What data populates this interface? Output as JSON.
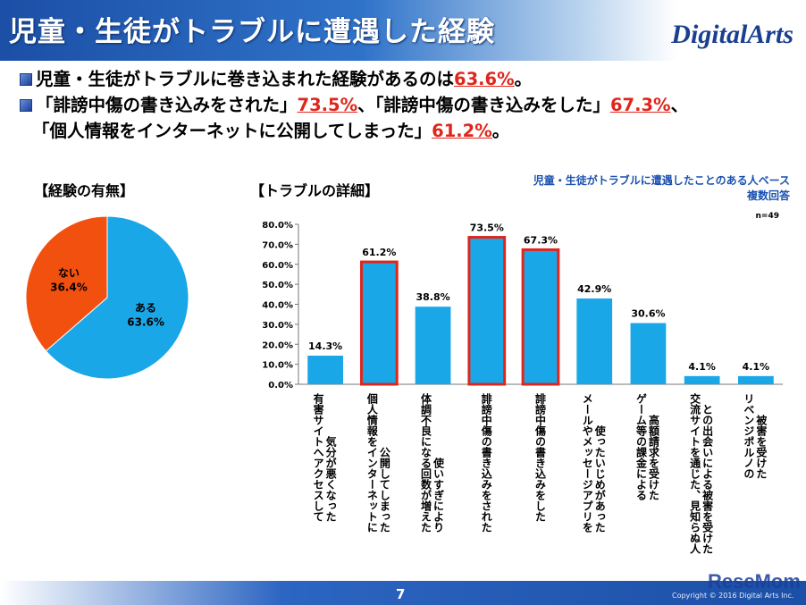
{
  "header": {
    "title": "児童・生徒がトラブルに遭遇した経験",
    "logo": "DigitalArts"
  },
  "bullets": {
    "line1_pre": "児童・生徒がトラブルに巻き込まれた経験があるのは",
    "line1_val": "63.6%",
    "line1_post": "。",
    "line2_a": "「誹謗中傷の書き込みをされた」",
    "line2_a_val": "73.5%",
    "line2_b": "、「誹謗中傷の書き込みをした」",
    "line2_b_val": "67.3%",
    "line2_post": "、",
    "line3_a": "「個人情報をインターネットに公開してしまった」",
    "line3_val": "61.2%",
    "line3_post": "。"
  },
  "sections": {
    "left": "【経験の有無】",
    "right": "【トラブルの詳細】"
  },
  "note": {
    "line1": "児童・生徒がトラブルに遭遇したことのある人ベース",
    "line2": "複数回答",
    "n": "n=49"
  },
  "chart_data": [
    {
      "type": "pie",
      "title": "【経験の有無】",
      "slices": [
        {
          "label": "ある",
          "value": 63.6,
          "value_label": "63.6%",
          "color": "#1aa7e8"
        },
        {
          "label": "ない",
          "value": 36.4,
          "value_label": "36.4%",
          "color": "#f2500f"
        }
      ]
    },
    {
      "type": "bar",
      "title": "【トラブルの詳細】",
      "ylim": [
        0,
        80
      ],
      "yticks": [
        "0.0%",
        "10.0%",
        "20.0%",
        "30.0%",
        "40.0%",
        "50.0%",
        "60.0%",
        "70.0%",
        "80.0%"
      ],
      "grid": false,
      "bar_color": "#1aa7e8",
      "highlight_color": "#e0261b",
      "categories": [
        {
          "lines": [
            "有害サイトへアクセスして",
            "気分が悪くなった"
          ],
          "value": 14.3,
          "value_label": "14.3%",
          "highlight": false
        },
        {
          "lines": [
            "個人情報をインターネットに",
            "公開してしまった"
          ],
          "value": 61.2,
          "value_label": "61.2%",
          "highlight": true
        },
        {
          "lines": [
            "体調不良になる回数が増えた",
            "使いすぎにより"
          ],
          "value": 38.8,
          "value_label": "38.8%",
          "highlight": false
        },
        {
          "lines": [
            "誹謗中傷の書き込みをされた"
          ],
          "value": 73.5,
          "value_label": "73.5%",
          "highlight": true
        },
        {
          "lines": [
            "誹謗中傷の書き込みをした"
          ],
          "value": 67.3,
          "value_label": "67.3%",
          "highlight": true
        },
        {
          "lines": [
            "メールやメッセージアプリを",
            "使ったいじめがあった"
          ],
          "value": 42.9,
          "value_label": "42.9%",
          "highlight": false
        },
        {
          "lines": [
            "ゲーム等の課金による",
            "高額請求を受けた"
          ],
          "value": 30.6,
          "value_label": "30.6%",
          "highlight": false
        },
        {
          "lines": [
            "交流サイトを通じた、見知らぬ人",
            "との出会いによる被害を受けた"
          ],
          "value": 4.1,
          "value_label": "4.1%",
          "highlight": false
        },
        {
          "lines": [
            "リベンジポルノの",
            "被害を受けた"
          ],
          "value": 4.1,
          "value_label": "4.1%",
          "highlight": false
        }
      ]
    }
  ],
  "footer": {
    "page": "7",
    "copyright": "Copyright © 2016 Digital Arts Inc.",
    "watermark": "ReseMom"
  }
}
